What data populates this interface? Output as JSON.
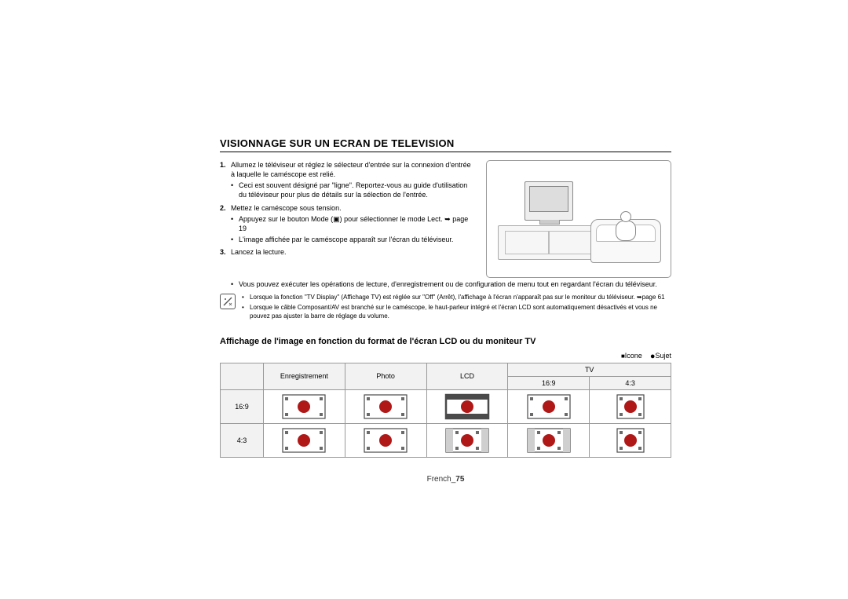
{
  "title": "VISIONNAGE SUR UN ECRAN DE TELEVISION",
  "steps": {
    "s1": {
      "num": "1.",
      "text": "Allumez le téléviseur et réglez le sélecteur d'entrée sur la connexion d'entrée à laquelle le caméscope est relié.",
      "bullets": [
        "Ceci est souvent désigné par \"ligne\". Reportez-vous au guide d'utilisation du téléviseur pour plus de détails sur la sélection de l'entrée."
      ]
    },
    "s2": {
      "num": "2.",
      "text": "Mettez le caméscope sous tension.",
      "bullets": [
        "Appuyez sur le bouton Mode (▣) pour sélectionner le mode Lect. ➥ page 19",
        "L'image affichée par le caméscope apparaît sur l'écran du téléviseur."
      ]
    },
    "s3": {
      "num": "3.",
      "text": "Lancez la lecture.",
      "bullets": [
        "Vous pouvez exécuter les opérations de lecture, d'enregistrement ou de configuration de menu tout en regardant l'écran du téléviseur."
      ]
    }
  },
  "notes": [
    "Lorsque la fonction \"TV Display\" (Affichage TV) est réglée sur \"Off\" (Arrêt), l'affichage à l'écran n'apparaît pas sur le moniteur du téléviseur. ➥page 61",
    "Lorsque le câble Composant/AV est branché sur le caméscope, le haut-parleur intégré et l'écran LCD sont automatiquement désactivés et vous ne pouvez pas ajuster la barre de réglage du volume."
  ],
  "subheading": "Affichage de l'image en fonction du format de l'écran LCD ou du moniteur TV",
  "legend": {
    "icon_label": "Icone",
    "subject_label": "Sujet"
  },
  "table": {
    "headers": {
      "rec": "Enregistrement",
      "photo": "Photo",
      "lcd": "LCD",
      "tv": "TV",
      "tv169": "16:9",
      "tv43": "4:3"
    },
    "rows": {
      "r169": "16:9",
      "r43": "4:3"
    },
    "colors": {
      "frame": "#4a4a4a",
      "dot": "#b01818",
      "corner": "#6a6a6a",
      "pillar": "#cfcfcf"
    },
    "cells": {
      "r169": {
        "rec": {
          "frameShape": "wide",
          "corners": true,
          "pillar": false,
          "dot": true
        },
        "photo": {
          "frameShape": "wide",
          "corners": true,
          "pillar": false,
          "dot": true
        },
        "lcd": {
          "frameShape": "letterbox",
          "corners": false,
          "pillar": false,
          "dot": true
        },
        "tv169": {
          "frameShape": "wide",
          "corners": true,
          "pillar": false,
          "dot": true
        },
        "tv43": {
          "frameShape": "square",
          "corners": true,
          "pillar": false,
          "dot": true
        }
      },
      "r43": {
        "rec": {
          "frameShape": "wide",
          "corners": true,
          "pillar": false,
          "dot": true
        },
        "photo": {
          "frameShape": "wide",
          "corners": true,
          "pillar": false,
          "dot": true
        },
        "lcd": {
          "frameShape": "wide",
          "corners": true,
          "pillar": true,
          "dot": true
        },
        "tv169": {
          "frameShape": "wide",
          "corners": true,
          "pillar": true,
          "dot": true
        },
        "tv43": {
          "frameShape": "square",
          "corners": true,
          "pillar": false,
          "dot": true
        }
      }
    }
  },
  "footer": {
    "lang": "French",
    "page": "75"
  }
}
